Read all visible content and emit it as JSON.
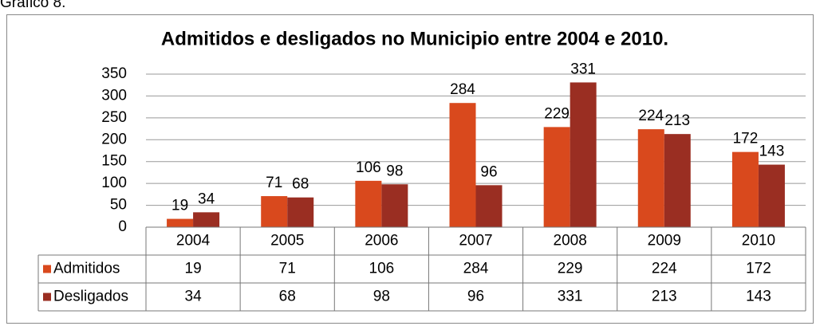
{
  "caption": "Gráfico 8.",
  "chart_data": {
    "type": "bar",
    "title": "Admitidos e desligados no Municipio entre 2004 e 2010.",
    "categories": [
      "2004",
      "2005",
      "2006",
      "2007",
      "2008",
      "2009",
      "2010"
    ],
    "series": [
      {
        "name": "Admitidos",
        "color": "#d9491d",
        "values": [
          19,
          71,
          106,
          284,
          229,
          224,
          172
        ]
      },
      {
        "name": "Desligados",
        "color": "#9a2e22",
        "values": [
          34,
          68,
          98,
          96,
          331,
          213,
          143
        ]
      }
    ],
    "ylim": [
      0,
      350
    ],
    "yticks": [
      0,
      50,
      100,
      150,
      200,
      250,
      300,
      350
    ],
    "grid": true,
    "data_table": true
  }
}
